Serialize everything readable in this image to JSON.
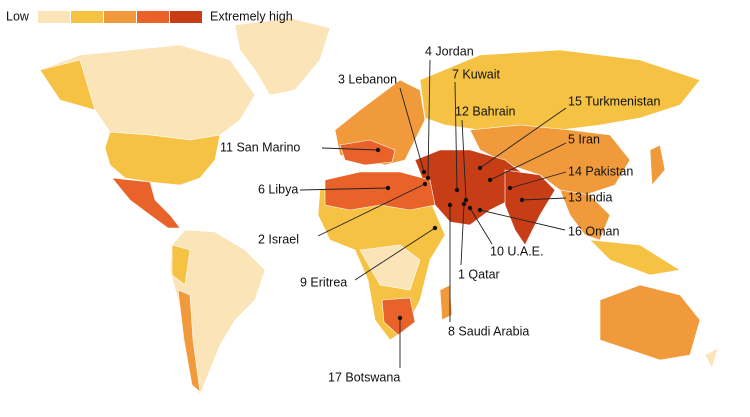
{
  "legend": {
    "low": "Low",
    "high": "Extremely high",
    "colors": [
      "#fbe4b8",
      "#f6c244",
      "#f19a3c",
      "#e8622a",
      "#c73e16"
    ]
  },
  "labels": [
    "4 Jordan",
    "7 Kuwait",
    "3 Lebanon",
    "12 Bahrain",
    "15 Turkmenistan",
    "5 Iran",
    "11 San Marino",
    "14 Pakistan",
    "6 Libya",
    "13 India",
    "2 Israel",
    "16 Oman",
    "10 U.A.E.",
    "1 Qatar",
    "9 Eritrea",
    "8 Saudi Arabia",
    "17 Botswana"
  ]
}
